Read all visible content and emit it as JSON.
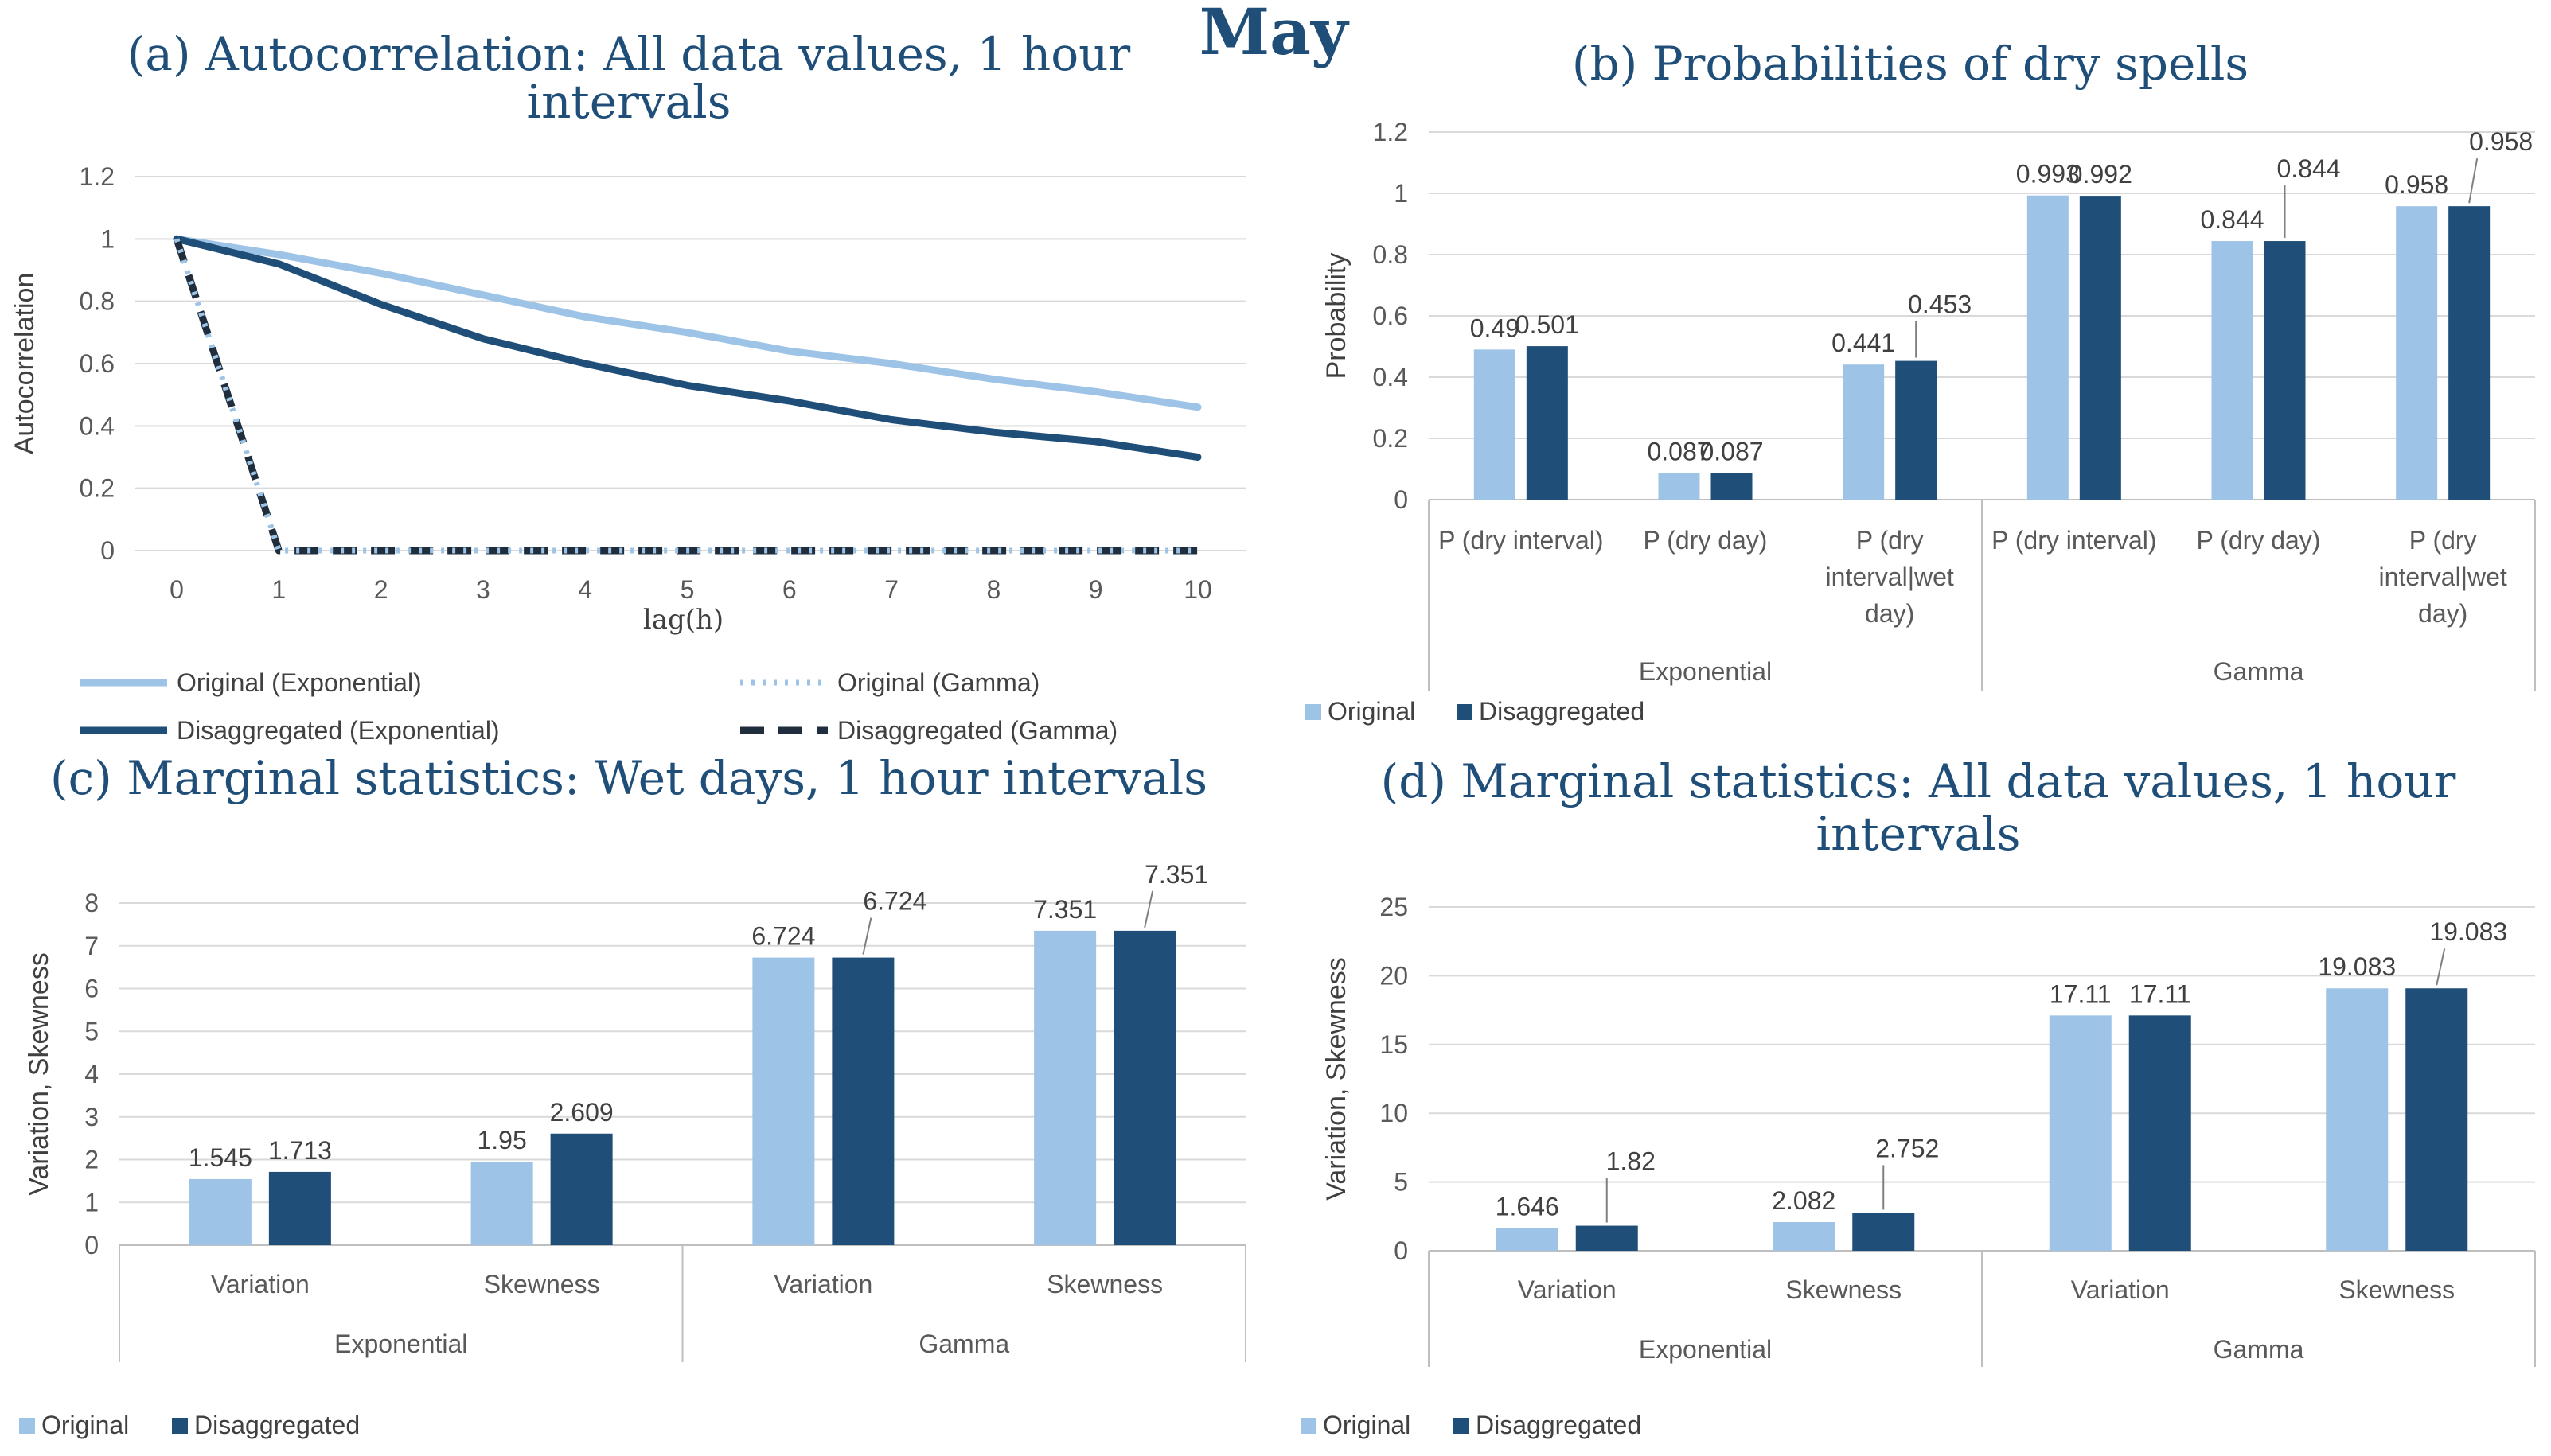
{
  "figure": {
    "main_title": "May",
    "colors": {
      "original": "#9DC3E6",
      "disaggregated": "#1F4E79",
      "gamma_dashed": "#1F2D3D",
      "grid": "#D9D9D9",
      "text": "#595959"
    }
  },
  "chart_data": [
    {
      "id": "a",
      "type": "line",
      "title_line1": "(a) Autocorrelation: All data values, 1 hour",
      "title_line2": "intervals",
      "xlabel": "lag(h)",
      "ylabel": "Autocorrelation",
      "x": [
        0,
        1,
        2,
        3,
        4,
        5,
        6,
        7,
        8,
        9,
        10
      ],
      "ylim": [
        0,
        1.2
      ],
      "yticks": [
        "0",
        "0.2",
        "0.4",
        "0.6",
        "0.8",
        "1",
        "1.2"
      ],
      "series": [
        {
          "name": "Original (Exponential)",
          "style": "solid-light",
          "values": [
            1,
            0.95,
            0.89,
            0.82,
            0.75,
            0.7,
            0.64,
            0.6,
            0.55,
            0.51,
            0.46
          ]
        },
        {
          "name": "Original (Gamma)",
          "style": "dotted-light",
          "values": [
            1,
            0,
            0,
            0,
            0,
            0,
            0,
            0,
            0,
            0,
            0
          ]
        },
        {
          "name": "Disaggregated (Exponential)",
          "style": "solid-dark",
          "values": [
            1,
            0.92,
            0.79,
            0.68,
            0.6,
            0.53,
            0.48,
            0.42,
            0.38,
            0.35,
            0.3
          ]
        },
        {
          "name": "Disaggregated (Gamma)",
          "style": "dashed-dark",
          "values": [
            1,
            0,
            0,
            0,
            0,
            0,
            0,
            0,
            0,
            0,
            0
          ]
        }
      ]
    },
    {
      "id": "b",
      "type": "bar",
      "title_line1": "(b) Probabilities of dry spells",
      "ylabel": "Probability",
      "ylim": [
        0,
        1.2
      ],
      "yticks": [
        "0",
        "0.2",
        "0.4",
        "0.6",
        "0.8",
        "1",
        "1.2"
      ],
      "groups": [
        "Exponential",
        "Gamma"
      ],
      "categories": [
        {
          "group": 0,
          "lines": [
            "P (dry interval)"
          ]
        },
        {
          "group": 0,
          "lines": [
            "P (dry day)"
          ]
        },
        {
          "group": 0,
          "lines": [
            "P (dry",
            "interval|wet",
            "day)"
          ]
        },
        {
          "group": 1,
          "lines": [
            "P (dry interval)"
          ]
        },
        {
          "group": 1,
          "lines": [
            "P (dry day)"
          ]
        },
        {
          "group": 1,
          "lines": [
            "P (dry",
            "interval|wet",
            "day)"
          ]
        }
      ],
      "series": [
        {
          "name": "Original",
          "values": [
            0.49,
            0.087,
            0.441,
            0.993,
            0.844,
            0.958
          ],
          "labels": [
            "0.49",
            "0.087",
            "0.441",
            "0.993",
            "0.844",
            "0.958"
          ]
        },
        {
          "name": "Disaggregated",
          "values": [
            0.501,
            0.087,
            0.453,
            0.992,
            0.844,
            0.958
          ],
          "labels": [
            "0.501",
            "0.087",
            "0.453",
            "0.992",
            "0.844",
            "0.958"
          ]
        }
      ]
    },
    {
      "id": "c",
      "type": "bar",
      "title_line1": "(c) Marginal statistics: Wet days, 1 hour intervals",
      "ylabel": "Variation, Skewness",
      "ylim": [
        0,
        8
      ],
      "yticks": [
        "0",
        "1",
        "2",
        "3",
        "4",
        "5",
        "6",
        "7",
        "8"
      ],
      "groups": [
        "Exponential",
        "Gamma"
      ],
      "categories": [
        {
          "group": 0,
          "lines": [
            "Variation"
          ]
        },
        {
          "group": 0,
          "lines": [
            "Skewness"
          ]
        },
        {
          "group": 1,
          "lines": [
            "Variation"
          ]
        },
        {
          "group": 1,
          "lines": [
            "Skewness"
          ]
        }
      ],
      "series": [
        {
          "name": "Original",
          "values": [
            1.545,
            1.95,
            6.724,
            7.351
          ],
          "labels": [
            "1.545",
            "1.95",
            "6.724",
            "7.351"
          ]
        },
        {
          "name": "Disaggregated",
          "values": [
            1.713,
            2.609,
            6.724,
            7.351
          ],
          "labels": [
            "1.713",
            "2.609",
            "6.724",
            "7.351"
          ]
        }
      ]
    },
    {
      "id": "d",
      "type": "bar",
      "title_line1": "(d) Marginal statistics: All data values, 1 hour",
      "title_line2": "intervals",
      "ylabel": "Variation, Skewness",
      "ylim": [
        0,
        25
      ],
      "yticks": [
        "0",
        "5",
        "10",
        "15",
        "20",
        "25"
      ],
      "groups": [
        "Exponential",
        "Gamma"
      ],
      "categories": [
        {
          "group": 0,
          "lines": [
            "Variation"
          ]
        },
        {
          "group": 0,
          "lines": [
            "Skewness"
          ]
        },
        {
          "group": 1,
          "lines": [
            "Variation"
          ]
        },
        {
          "group": 1,
          "lines": [
            "Skewness"
          ]
        }
      ],
      "series": [
        {
          "name": "Original",
          "values": [
            1.646,
            2.082,
            17.11,
            19.083
          ],
          "labels": [
            "1.646",
            "2.082",
            "17.11",
            "19.083"
          ]
        },
        {
          "name": "Disaggregated",
          "values": [
            1.82,
            2.752,
            17.11,
            19.083
          ],
          "labels": [
            "1.82",
            "2.752",
            "17.11",
            "19.083"
          ]
        }
      ]
    }
  ]
}
